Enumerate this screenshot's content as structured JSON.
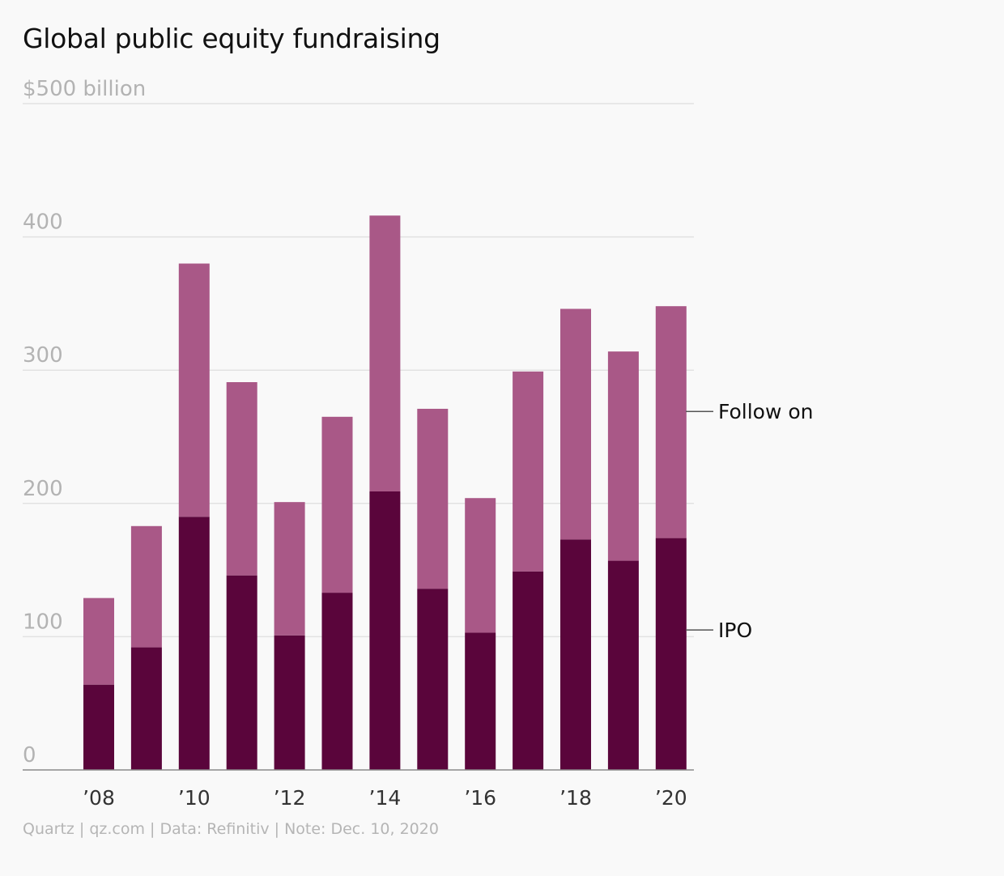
{
  "chart_data": {
    "type": "bar",
    "stacked": true,
    "title": "Global public equity fundraising",
    "ytick_labels": [
      "0",
      "100",
      "200",
      "300",
      "400",
      "$500 billion"
    ],
    "yticks": [
      0,
      100,
      200,
      300,
      400,
      500
    ],
    "ylim": [
      0,
      500
    ],
    "x": [
      "2008",
      "2009",
      "2010",
      "2011",
      "2012",
      "2013",
      "2014",
      "2015",
      "2016",
      "2017",
      "2018",
      "2019",
      "2020"
    ],
    "xtick_labels": [
      "’08",
      "",
      "’10",
      "",
      "’12",
      "",
      "’14",
      "",
      "’16",
      "",
      "’18",
      "",
      "’20"
    ],
    "series": [
      {
        "name": "IPO",
        "color": "#5a053b",
        "values": [
          64,
          92,
          190,
          146,
          101,
          133,
          209,
          136,
          103,
          149,
          173,
          157,
          174
        ]
      },
      {
        "name": "Follow on",
        "color": "#a95887",
        "values": [
          65,
          91,
          190,
          145,
          100,
          132,
          207,
          135,
          101,
          150,
          173,
          157,
          174
        ]
      }
    ],
    "grid": true,
    "legend": "right, direct labels"
  },
  "source": "Quartz | qz.com | Data: Refinitiv | Note: Dec. 10, 2020"
}
